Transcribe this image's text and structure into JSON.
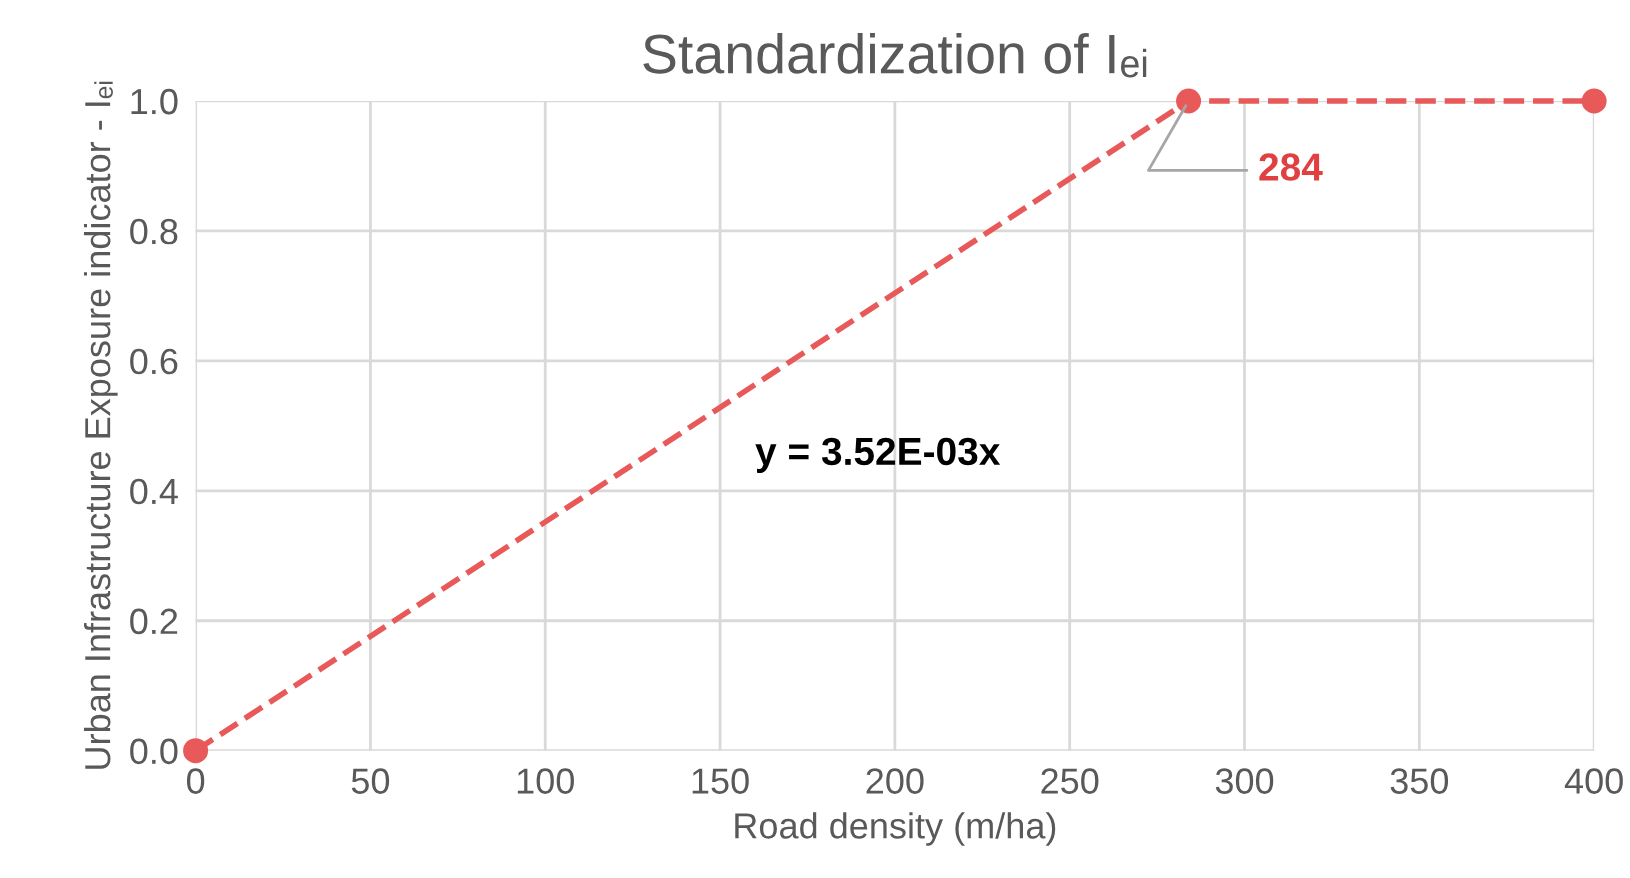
{
  "chart_data": {
    "type": "line",
    "title": "Standardization of Iₑᵢ",
    "xlabel": "Road density (m/ha)",
    "ylabel": "Urban Infrastructure Exposure indicator - Iₑᵢ",
    "x": [
      0,
      284,
      400
    ],
    "series": [
      {
        "color": "#e8595a",
        "values": [
          0,
          1,
          1
        ]
      }
    ],
    "xlim": [
      0,
      400
    ],
    "xticks": [
      0,
      50,
      100,
      150,
      200,
      250,
      300,
      350,
      400
    ],
    "ylim": [
      0,
      1
    ],
    "yticks": [
      {
        "value": 0,
        "label": "0.0"
      },
      {
        "value": 0.2,
        "label": "0.2"
      },
      {
        "value": 0.4,
        "label": "0.4"
      },
      {
        "value": 0.6,
        "label": "0.6"
      },
      {
        "value": 0.8,
        "label": "0.8"
      },
      {
        "value": 1,
        "label": "1.0"
      }
    ],
    "annotations": [
      "y = 3.52E-03x",
      {
        "text": "284",
        "x": 284,
        "y": 1
      }
    ],
    "grid": true,
    "marker": "circle",
    "line_style": "dashed"
  }
}
